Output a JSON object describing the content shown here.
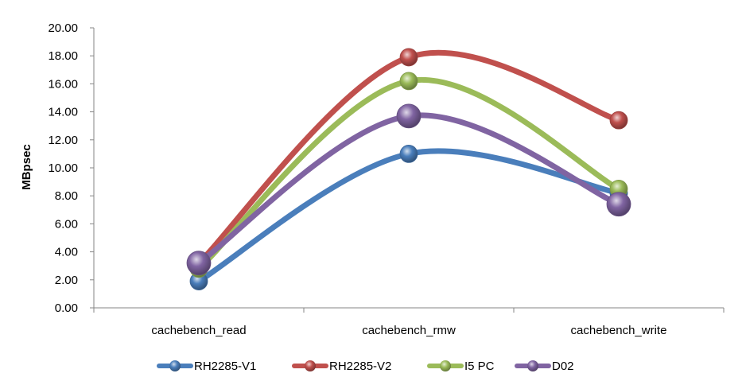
{
  "chart_data": {
    "type": "line",
    "title": "",
    "xlabel": "",
    "ylabel": "MBpsec",
    "categories": [
      "cachebench_read",
      "cachebench_rmw",
      "cachebench_write"
    ],
    "ylim": [
      0,
      20
    ],
    "ytick_step": 2,
    "ytick_labels": [
      "0.00",
      "2.00",
      "4.00",
      "6.00",
      "8.00",
      "10.00",
      "12.00",
      "14.00",
      "16.00",
      "18.00",
      "20.00"
    ],
    "grid": false,
    "smooth": true,
    "legend_position": "bottom",
    "series": [
      {
        "name": "RH2285-V1",
        "color": "#4A7EBB",
        "values": [
          1.9,
          11.0,
          8.2
        ]
      },
      {
        "name": "RH2285-V2",
        "color": "#C0504D",
        "values": [
          3.2,
          17.9,
          13.4
        ]
      },
      {
        "name": "I5 PC",
        "color": "#9BBB59",
        "values": [
          2.8,
          16.2,
          8.5
        ]
      },
      {
        "name": "D02",
        "color": "#8064A2",
        "values": [
          3.2,
          13.7,
          7.4
        ]
      }
    ]
  }
}
